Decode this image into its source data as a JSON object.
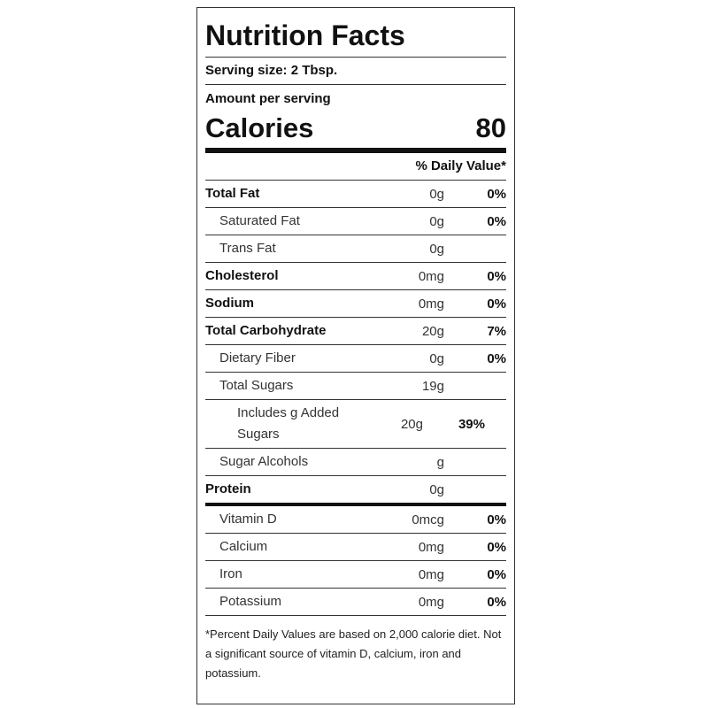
{
  "header": {
    "title": "Nutrition Facts",
    "serving_size": "Serving size: 2 Tbsp.",
    "amount_per_serving": "Amount per serving"
  },
  "calories": {
    "label": "Calories",
    "value": "80"
  },
  "daily_value_header": "% Daily Value*",
  "nutrients": [
    {
      "name": "Total Fat",
      "amount": "0g",
      "dv": "0%",
      "level": 0
    },
    {
      "name": "Saturated Fat",
      "amount": "0g",
      "dv": "0%",
      "level": 1
    },
    {
      "name": "Trans Fat",
      "amount": "0g",
      "level": 1
    },
    {
      "name": "Cholesterol",
      "amount": "0mg",
      "dv": "0%",
      "level": 0
    },
    {
      "name": "Sodium",
      "amount": "0mg",
      "dv": "0%",
      "level": 0
    },
    {
      "name": "Total Carbohydrate",
      "amount": "20g",
      "dv": "7%",
      "level": 0
    },
    {
      "name": "Dietary Fiber",
      "amount": "0g",
      "dv": "0%",
      "level": 1
    },
    {
      "name": "Total Sugars",
      "amount": "19g",
      "level": 1
    },
    {
      "name": "Includes g Added Sugars",
      "amount": "20g",
      "dv": "39%",
      "level": 2
    },
    {
      "name": "Sugar Alcohols",
      "amount": "g",
      "level": 1
    },
    {
      "name": "Protein",
      "amount": "0g",
      "level": 0
    }
  ],
  "vitamins": [
    {
      "name": "Vitamin D",
      "amount": "0mcg",
      "dv": "0%"
    },
    {
      "name": "Calcium",
      "amount": "0mg",
      "dv": "0%"
    },
    {
      "name": "Iron",
      "amount": "0mg",
      "dv": "0%"
    },
    {
      "name": "Potassium",
      "amount": "0mg",
      "dv": "0%"
    }
  ],
  "footnote": "*Percent Daily Values are based on 2,000 calorie diet. Not a significant source of vitamin D, calcium, iron and potassium."
}
